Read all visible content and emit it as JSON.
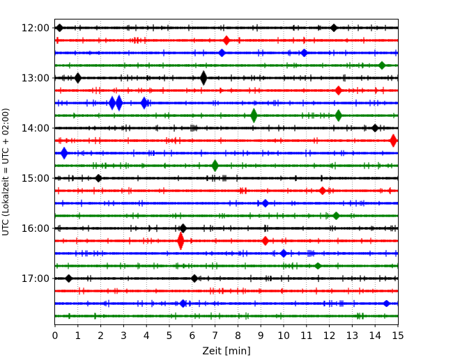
{
  "chart_data": {
    "type": "line",
    "xlabel": "Zeit  [min]",
    "ylabel": "UTC (Lokalzeit = UTC + 02:00)",
    "xlim": [
      0,
      15
    ],
    "x_ticks": [
      0,
      1,
      2,
      3,
      4,
      5,
      6,
      7,
      8,
      9,
      10,
      11,
      12,
      13,
      14,
      15
    ],
    "y_ticks": [
      {
        "label": "12:00",
        "trace": 0
      },
      {
        "label": "13:00",
        "trace": 4
      },
      {
        "label": "14:00",
        "trace": 8
      },
      {
        "label": "15:00",
        "trace": 12
      },
      {
        "label": "16:00",
        "trace": 16
      },
      {
        "label": "17:00",
        "trace": 20
      }
    ],
    "trace_interval_minutes": 15,
    "trace_colors": [
      "#000000",
      "#ff0000",
      "#0000ff",
      "#008000"
    ],
    "grid_x": true,
    "events": [
      {
        "trace": 0,
        "x": 0.2,
        "amp": 5
      },
      {
        "trace": 0,
        "x": 12.2,
        "amp": 5
      },
      {
        "trace": 1,
        "x": 7.5,
        "amp": 6
      },
      {
        "trace": 2,
        "x": 7.3,
        "amp": 5
      },
      {
        "trace": 2,
        "x": 10.9,
        "amp": 5
      },
      {
        "trace": 3,
        "x": 14.3,
        "amp": 5
      },
      {
        "trace": 4,
        "x": 1.0,
        "amp": 7
      },
      {
        "trace": 4,
        "x": 6.5,
        "amp": 10
      },
      {
        "trace": 5,
        "x": 12.4,
        "amp": 6
      },
      {
        "trace": 6,
        "x": 2.5,
        "amp": 9
      },
      {
        "trace": 6,
        "x": 2.8,
        "amp": 11
      },
      {
        "trace": 6,
        "x": 3.9,
        "amp": 8
      },
      {
        "trace": 7,
        "x": 8.7,
        "amp": 10
      },
      {
        "trace": 7,
        "x": 12.4,
        "amp": 8
      },
      {
        "trace": 8,
        "x": 14.0,
        "amp": 5
      },
      {
        "trace": 9,
        "x": 14.8,
        "amp": 9
      },
      {
        "trace": 10,
        "x": 0.4,
        "amp": 8
      },
      {
        "trace": 11,
        "x": 7.0,
        "amp": 8
      },
      {
        "trace": 12,
        "x": 1.9,
        "amp": 5
      },
      {
        "trace": 13,
        "x": 11.7,
        "amp": 5
      },
      {
        "trace": 14,
        "x": 9.2,
        "amp": 5
      },
      {
        "trace": 15,
        "x": 12.3,
        "amp": 5
      },
      {
        "trace": 16,
        "x": 5.6,
        "amp": 6
      },
      {
        "trace": 17,
        "x": 5.5,
        "amp": 13
      },
      {
        "trace": 17,
        "x": 9.2,
        "amp": 6
      },
      {
        "trace": 18,
        "x": 10.0,
        "amp": 5
      },
      {
        "trace": 19,
        "x": 11.5,
        "amp": 4
      },
      {
        "trace": 20,
        "x": 0.6,
        "amp": 5
      },
      {
        "trace": 20,
        "x": 6.1,
        "amp": 5
      },
      {
        "trace": 22,
        "x": 5.6,
        "amp": 5
      },
      {
        "trace": 22,
        "x": 14.5,
        "amp": 4
      }
    ]
  }
}
